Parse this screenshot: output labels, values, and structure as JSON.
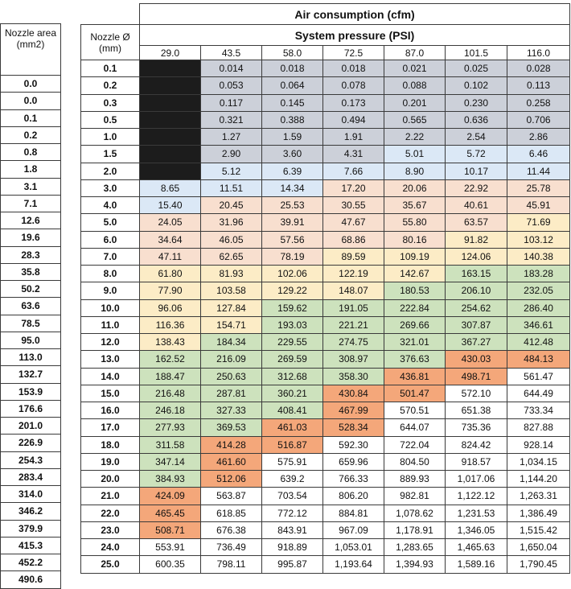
{
  "title": "Air consumption (cfm)",
  "subtitle": "System pressure (PSI)",
  "area_header": [
    "Nozzle area",
    "(mm2)"
  ],
  "diameter_header": [
    "Nozzle Ø",
    "(mm)"
  ],
  "pressures": [
    "29.0",
    "43.5",
    "58.0",
    "72.5",
    "87.0",
    "101.5",
    "116.0"
  ],
  "colors": {
    "gray": "#ccd0d9",
    "blue": "#dbe8f6",
    "peach": "#f8dfcf",
    "yellow": "#fcecc6",
    "green": "#cde2bd",
    "orange": "#f4a77a",
    "black": "#1c1c1c",
    "white": "#ffffff"
  },
  "rows": [
    {
      "area": "0.0",
      "dia": "0.1",
      "vals": [
        "",
        "0.014",
        "0.018",
        "0.018",
        "0.021",
        "0.025",
        "0.028"
      ],
      "cls": [
        "k",
        "g",
        "g",
        "g",
        "g",
        "g",
        "g"
      ]
    },
    {
      "area": "0.0",
      "dia": "0.2",
      "vals": [
        "",
        "0.053",
        "0.064",
        "0.078",
        "0.088",
        "0.102",
        "0.113"
      ],
      "cls": [
        "k",
        "g",
        "g",
        "g",
        "g",
        "g",
        "g"
      ]
    },
    {
      "area": "0.1",
      "dia": "0.3",
      "vals": [
        "",
        "0.117",
        "0.145",
        "0.173",
        "0.201",
        "0.230",
        "0.258"
      ],
      "cls": [
        "k",
        "g",
        "g",
        "g",
        "g",
        "g",
        "g"
      ]
    },
    {
      "area": "0.2",
      "dia": "0.5",
      "vals": [
        "",
        "0.321",
        "0.388",
        "0.494",
        "0.565",
        "0.636",
        "0.706"
      ],
      "cls": [
        "k",
        "g",
        "g",
        "g",
        "g",
        "g",
        "g"
      ]
    },
    {
      "area": "0.8",
      "dia": "1.0",
      "vals": [
        "",
        "1.27",
        "1.59",
        "1.91",
        "2.22",
        "2.54",
        "2.86"
      ],
      "cls": [
        "k",
        "g",
        "g",
        "g",
        "g",
        "g",
        "g"
      ]
    },
    {
      "area": "1.8",
      "dia": "1.5",
      "vals": [
        "",
        "2.90",
        "3.60",
        "4.31",
        "5.01",
        "5.72",
        "6.46"
      ],
      "cls": [
        "k",
        "g",
        "g",
        "g",
        "b",
        "b",
        "b"
      ]
    },
    {
      "area": "3.1",
      "dia": "2.0",
      "vals": [
        "",
        "5.12",
        "6.39",
        "7.66",
        "8.90",
        "10.17",
        "11.44"
      ],
      "cls": [
        "k",
        "b",
        "b",
        "b",
        "b",
        "b",
        "b"
      ]
    },
    {
      "area": "7.1",
      "dia": "3.0",
      "vals": [
        "8.65",
        "11.51",
        "14.34",
        "17.20",
        "20.06",
        "22.92",
        "25.78"
      ],
      "cls": [
        "b",
        "b",
        "b",
        "p",
        "p",
        "p",
        "p"
      ]
    },
    {
      "area": "12.6",
      "dia": "4.0",
      "vals": [
        "15.40",
        "20.45",
        "25.53",
        "30.55",
        "35.67",
        "40.61",
        "45.91"
      ],
      "cls": [
        "b",
        "p",
        "p",
        "p",
        "p",
        "p",
        "p"
      ]
    },
    {
      "area": "19.6",
      "dia": "5.0",
      "vals": [
        "24.05",
        "31.96",
        "39.91",
        "47.67",
        "55.80",
        "63.57",
        "71.69"
      ],
      "cls": [
        "p",
        "p",
        "p",
        "p",
        "p",
        "p",
        "y"
      ]
    },
    {
      "area": "28.3",
      "dia": "6.0",
      "vals": [
        "34.64",
        "46.05",
        "57.56",
        "68.86",
        "80.16",
        "91.82",
        "103.12"
      ],
      "cls": [
        "p",
        "p",
        "p",
        "p",
        "p",
        "y",
        "y"
      ]
    },
    {
      "area": "35.8",
      "dia": "7.0",
      "vals": [
        "47.11",
        "62.65",
        "78.19",
        "89.59",
        "109.19",
        "124.06",
        "140.38"
      ],
      "cls": [
        "p",
        "p",
        "p",
        "y",
        "y",
        "y",
        "y"
      ]
    },
    {
      "area": "50.2",
      "dia": "8.0",
      "vals": [
        "61.80",
        "81.93",
        "102.06",
        "122.19",
        "142.67",
        "163.15",
        "183.28"
      ],
      "cls": [
        "y",
        "y",
        "y",
        "y",
        "y",
        "n",
        "n"
      ]
    },
    {
      "area": "63.6",
      "dia": "9.0",
      "vals": [
        "77.90",
        "103.58",
        "129.22",
        "148.07",
        "180.53",
        "206.10",
        "232.05"
      ],
      "cls": [
        "y",
        "y",
        "y",
        "y",
        "n",
        "n",
        "n"
      ]
    },
    {
      "area": "78.5",
      "dia": "10.0",
      "vals": [
        "96.06",
        "127.84",
        "159.62",
        "191.05",
        "222.84",
        "254.62",
        "286.40"
      ],
      "cls": [
        "y",
        "y",
        "n",
        "n",
        "n",
        "n",
        "n"
      ]
    },
    {
      "area": "95.0",
      "dia": "11.0",
      "vals": [
        "116.36",
        "154.71",
        "193.03",
        "221.21",
        "269.66",
        "307.87",
        "346.61"
      ],
      "cls": [
        "y",
        "y",
        "n",
        "n",
        "n",
        "n",
        "n"
      ]
    },
    {
      "area": "113.0",
      "dia": "12.0",
      "vals": [
        "138.43",
        "184.34",
        "229.55",
        "274.75",
        "321.01",
        "367.27",
        "412.48"
      ],
      "cls": [
        "y",
        "n",
        "n",
        "n",
        "n",
        "n",
        "n"
      ]
    },
    {
      "area": "132.7",
      "dia": "13.0",
      "vals": [
        "162.52",
        "216.09",
        "269.59",
        "308.97",
        "376.63",
        "430.03",
        "484.13"
      ],
      "cls": [
        "n",
        "n",
        "n",
        "n",
        "n",
        "o",
        "o"
      ]
    },
    {
      "area": "153.9",
      "dia": "14.0",
      "vals": [
        "188.47",
        "250.63",
        "312.68",
        "358.30",
        "436.81",
        "498.71",
        "561.47"
      ],
      "cls": [
        "n",
        "n",
        "n",
        "n",
        "o",
        "o",
        "w"
      ]
    },
    {
      "area": "176.6",
      "dia": "15.0",
      "vals": [
        "216.48",
        "287.81",
        "360.21",
        "430.84",
        "501.47",
        "572.10",
        "644.49"
      ],
      "cls": [
        "n",
        "n",
        "n",
        "o",
        "o",
        "w",
        "w"
      ]
    },
    {
      "area": "201.0",
      "dia": "16.0",
      "vals": [
        "246.18",
        "327.33",
        "408.41",
        "467.99",
        "570.51",
        "651.38",
        "733.34"
      ],
      "cls": [
        "n",
        "n",
        "n",
        "o",
        "w",
        "w",
        "w"
      ]
    },
    {
      "area": "226.9",
      "dia": "17.0",
      "vals": [
        "277.93",
        "369.53",
        "461.03",
        "528.34",
        "644.07",
        "735.36",
        "827.88"
      ],
      "cls": [
        "n",
        "n",
        "o",
        "o",
        "w",
        "w",
        "w"
      ]
    },
    {
      "area": "254.3",
      "dia": "18.0",
      "vals": [
        "311.58",
        "414.28",
        "516.87",
        "592.30",
        "722.04",
        "824.42",
        "928.14"
      ],
      "cls": [
        "n",
        "o",
        "o",
        "w",
        "w",
        "w",
        "w"
      ]
    },
    {
      "area": "283.4",
      "dia": "19.0",
      "vals": [
        "347.14",
        "461.60",
        "575.91",
        "659.96",
        "804.50",
        "918.57",
        "1,034.15"
      ],
      "cls": [
        "n",
        "o",
        "w",
        "w",
        "w",
        "w",
        "w"
      ]
    },
    {
      "area": "314.0",
      "dia": "20.0",
      "vals": [
        "384.93",
        "512.06",
        "639.2",
        "766.33",
        "889.93",
        "1,017.06",
        "1,144.20"
      ],
      "cls": [
        "n",
        "o",
        "w",
        "w",
        "w",
        "w",
        "w"
      ]
    },
    {
      "area": "346.2",
      "dia": "21.0",
      "vals": [
        "424.09",
        "563.87",
        "703.54",
        "806.20",
        "982.81",
        "1,122.12",
        "1,263.31"
      ],
      "cls": [
        "o",
        "w",
        "w",
        "w",
        "w",
        "w",
        "w"
      ]
    },
    {
      "area": "379.9",
      "dia": "22.0",
      "vals": [
        "465.45",
        "618.85",
        "772.12",
        "884.81",
        "1,078.62",
        "1,231.53",
        "1,386.49"
      ],
      "cls": [
        "o",
        "w",
        "w",
        "w",
        "w",
        "w",
        "w"
      ]
    },
    {
      "area": "415.3",
      "dia": "23.0",
      "vals": [
        "508.71",
        "676.38",
        "843.91",
        "967.09",
        "1,178.91",
        "1,346.05",
        "1,515.42"
      ],
      "cls": [
        "o",
        "w",
        "w",
        "w",
        "w",
        "w",
        "w"
      ]
    },
    {
      "area": "452.2",
      "dia": "24.0",
      "vals": [
        "553.91",
        "736.49",
        "918.89",
        "1,053.01",
        "1,283.65",
        "1,465.63",
        "1,650.04"
      ],
      "cls": [
        "w",
        "w",
        "w",
        "w",
        "w",
        "w",
        "w"
      ]
    },
    {
      "area": "490.6",
      "dia": "25.0",
      "vals": [
        "600.35",
        "798.11",
        "995.87",
        "1,193.64",
        "1,394.93",
        "1,589.16",
        "1,790.45"
      ],
      "cls": [
        "w",
        "w",
        "w",
        "w",
        "w",
        "w",
        "w"
      ]
    }
  ]
}
